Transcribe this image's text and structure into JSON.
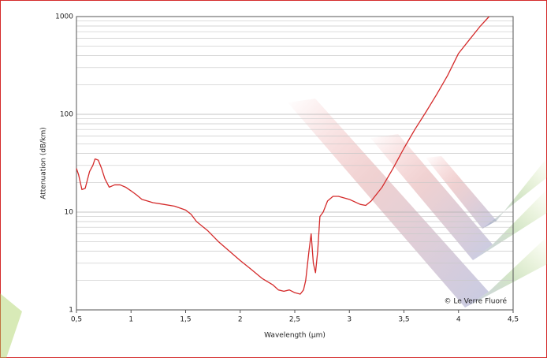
{
  "chart_data": {
    "type": "line",
    "x_label": "Wavelength (µm)",
    "y_label": "Attenuation (dB/km)",
    "annotation": "© Le Verre Fluoré",
    "color": "#d42a2a",
    "log_y": true,
    "grid": true,
    "x": [
      0.5,
      0.52,
      0.55,
      0.58,
      0.62,
      0.65,
      0.67,
      0.7,
      0.73,
      0.76,
      0.8,
      0.85,
      0.9,
      0.95,
      1.0,
      1.05,
      1.1,
      1.15,
      1.2,
      1.3,
      1.4,
      1.5,
      1.55,
      1.6,
      1.7,
      1.8,
      1.9,
      2.0,
      2.1,
      2.2,
      2.3,
      2.35,
      2.4,
      2.45,
      2.5,
      2.55,
      2.58,
      2.6,
      2.63,
      2.65,
      2.67,
      2.69,
      2.71,
      2.73,
      2.76,
      2.8,
      2.85,
      2.9,
      3.0,
      3.1,
      3.15,
      3.2,
      3.3,
      3.4,
      3.5,
      3.6,
      3.7,
      3.8,
      3.9,
      4.0,
      4.1,
      4.2,
      4.28
    ],
    "values": [
      28,
      24,
      17,
      17.5,
      26,
      30,
      35,
      34,
      28,
      22,
      18,
      19,
      19,
      18,
      16.5,
      15,
      13.5,
      13,
      12.5,
      12,
      11.5,
      10.5,
      9.5,
      8,
      6.5,
      5,
      4,
      3.2,
      2.6,
      2.1,
      1.8,
      1.6,
      1.55,
      1.6,
      1.5,
      1.45,
      1.6,
      2,
      4,
      6,
      3,
      2.4,
      4,
      9,
      10,
      13,
      14.5,
      14.5,
      13.5,
      12,
      11.7,
      13,
      18,
      28,
      45,
      70,
      105,
      160,
      250,
      420,
      580,
      800,
      1000
    ],
    "xlim": [
      0.5,
      4.5
    ],
    "xticks": [
      {
        "value": 0.5,
        "label": "0,5"
      },
      1,
      {
        "value": 1.5,
        "label": "1,5"
      },
      2,
      {
        "value": 2.5,
        "label": "2,5"
      },
      3,
      {
        "value": 3.5,
        "label": "3,5"
      },
      4,
      {
        "value": 4.5,
        "label": "4,5"
      }
    ],
    "ylim": [
      1,
      1000
    ],
    "yticks": [
      1,
      10,
      100,
      1000
    ],
    "yminor": [
      2,
      3,
      4,
      5,
      6,
      7,
      8,
      9,
      20,
      30,
      40,
      50,
      60,
      70,
      80,
      90,
      200,
      300,
      400,
      500,
      600,
      700,
      800,
      900
    ]
  }
}
